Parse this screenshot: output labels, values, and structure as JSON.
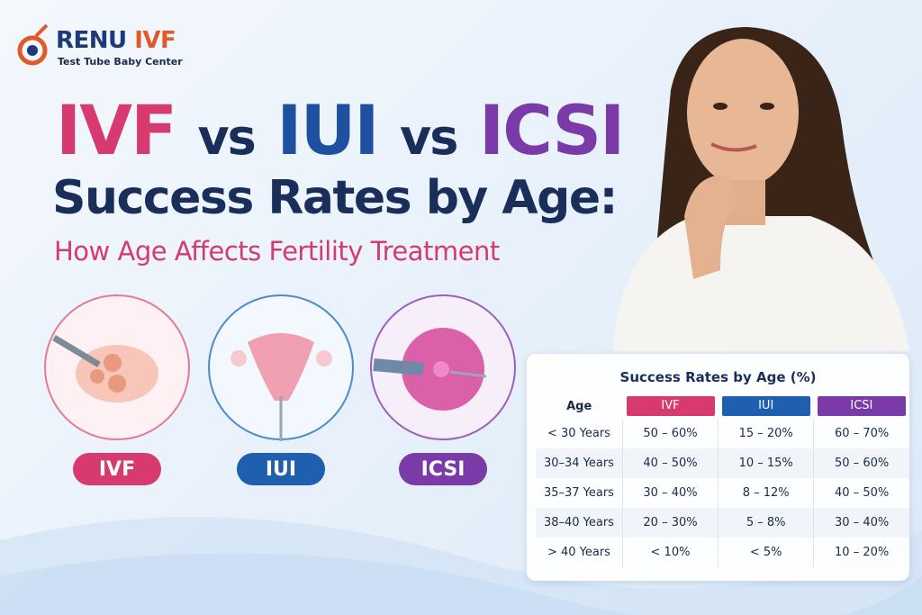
{
  "logo": {
    "name_part1": "RENU",
    "name_part2": "IVF",
    "tagline": "Test Tube Baby Center"
  },
  "headline": {
    "line1": [
      "IVF",
      "vs",
      "IUI",
      "vs",
      "ICSI"
    ],
    "line2": "Success Rates by Age:",
    "subtitle": "How Age Affects Fertility Treatment"
  },
  "treatments": [
    "IVF",
    "IUI",
    "ICSI"
  ],
  "table": {
    "title": "Success Rates by Age (%)",
    "header": [
      "Age",
      "IVF",
      "IUI",
      "ICSI"
    ],
    "rows": [
      [
        "< 30 Years",
        "50 – 60%",
        "15 – 20%",
        "60 – 70%"
      ],
      [
        "30–34 Years",
        "40 – 50%",
        "10 – 15%",
        "50 – 60%"
      ],
      [
        "35–37 Years",
        "30 – 40%",
        "8 – 12%",
        "40 – 50%"
      ],
      [
        "38–40 Years",
        "20 – 30%",
        "5 – 8%",
        "30 – 40%"
      ],
      [
        "> 40 Years",
        "< 10%",
        "< 5%",
        "10 – 20%"
      ]
    ]
  }
}
